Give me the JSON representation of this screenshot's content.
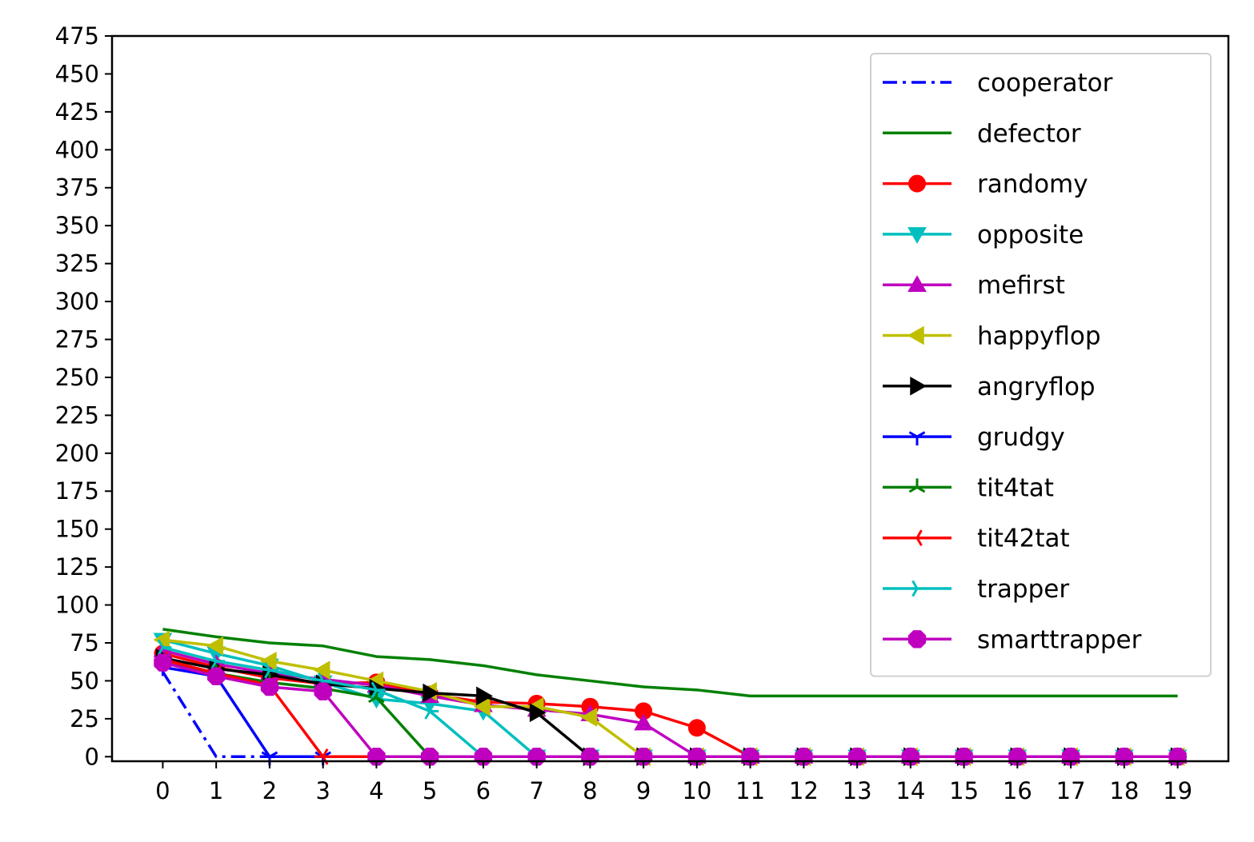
{
  "chart_data": {
    "type": "line",
    "title": "",
    "xlabel": "",
    "ylabel": "",
    "x": [
      0,
      1,
      2,
      3,
      4,
      5,
      6,
      7,
      8,
      9,
      10,
      11,
      12,
      13,
      14,
      15,
      16,
      17,
      18,
      19
    ],
    "xlim": [
      -0.95,
      19.95
    ],
    "ylim": [
      -3,
      475
    ],
    "yticks": [
      0,
      25,
      50,
      75,
      100,
      125,
      150,
      175,
      200,
      225,
      250,
      275,
      300,
      325,
      350,
      375,
      400,
      425,
      450,
      475
    ],
    "grid": false,
    "legend_position": "top-right",
    "series": [
      {
        "name": "cooperator",
        "color": "#0000ff",
        "marker": "none",
        "dash": "dashdot",
        "values": [
          56,
          0,
          0,
          0,
          0,
          0,
          0,
          0,
          0,
          0,
          0,
          0,
          0,
          0,
          0,
          0,
          0,
          0,
          0,
          0
        ]
      },
      {
        "name": "defector",
        "color": "#008000",
        "marker": "none",
        "dash": "solid",
        "values": [
          84,
          79,
          75,
          73,
          66,
          64,
          60,
          54,
          50,
          46,
          44,
          40,
          40,
          40,
          40,
          40,
          40,
          40,
          40,
          40
        ]
      },
      {
        "name": "randomy",
        "color": "#ff0000",
        "marker": "circle",
        "dash": "solid",
        "values": [
          68,
          59,
          52,
          48,
          49,
          41,
          36,
          35,
          33,
          30,
          19,
          0,
          0,
          0,
          0,
          0,
          0,
          0,
          0,
          0
        ]
      },
      {
        "name": "opposite",
        "color": "#00bfbf",
        "marker": "triangle-down",
        "dash": "solid",
        "values": [
          77,
          68,
          60,
          49,
          38,
          35,
          30,
          0,
          0,
          0,
          0,
          0,
          0,
          0,
          0,
          0,
          0,
          0,
          0,
          0
        ]
      },
      {
        "name": "mefirst",
        "color": "#bf00bf",
        "marker": "triangle-up",
        "dash": "solid",
        "values": [
          70,
          61,
          55,
          51,
          47,
          40,
          34,
          31,
          28,
          22,
          0,
          0,
          0,
          0,
          0,
          0,
          0,
          0,
          0,
          0
        ]
      },
      {
        "name": "happyflop",
        "color": "#bfbf00",
        "marker": "triangle-left",
        "dash": "solid",
        "values": [
          77,
          73,
          63,
          57,
          50,
          43,
          33,
          33,
          26,
          0,
          0,
          0,
          0,
          0,
          0,
          0,
          0,
          0,
          0,
          0
        ]
      },
      {
        "name": "angryflop",
        "color": "#000000",
        "marker": "triangle-right",
        "dash": "solid",
        "values": [
          65,
          58,
          54,
          48,
          45,
          42,
          40,
          29,
          0,
          0,
          0,
          0,
          0,
          0,
          0,
          0,
          0,
          0,
          0,
          0
        ]
      },
      {
        "name": "grudgy",
        "color": "#0000ff",
        "marker": "tri-down",
        "dash": "solid",
        "values": [
          59,
          53,
          0,
          0,
          0,
          0,
          0,
          0,
          0,
          0,
          0,
          0,
          0,
          0,
          0,
          0,
          0,
          0,
          0,
          0
        ]
      },
      {
        "name": "tit4tat",
        "color": "#008000",
        "marker": "tri-up",
        "dash": "solid",
        "values": [
          62,
          55,
          49,
          45,
          39,
          0,
          0,
          0,
          0,
          0,
          0,
          0,
          0,
          0,
          0,
          0,
          0,
          0,
          0,
          0
        ]
      },
      {
        "name": "tit42tat",
        "color": "#ff0000",
        "marker": "tri-left",
        "dash": "solid",
        "values": [
          64,
          55,
          47,
          0,
          0,
          0,
          0,
          0,
          0,
          0,
          0,
          0,
          0,
          0,
          0,
          0,
          0,
          0,
          0,
          0
        ]
      },
      {
        "name": "trapper",
        "color": "#00bfbf",
        "marker": "tri-right",
        "dash": "solid",
        "values": [
          72,
          63,
          57,
          50,
          44,
          30,
          0,
          0,
          0,
          0,
          0,
          0,
          0,
          0,
          0,
          0,
          0,
          0,
          0,
          0
        ]
      },
      {
        "name": "smarttrapper",
        "color": "#bf00bf",
        "marker": "octagon",
        "dash": "solid",
        "values": [
          62,
          53,
          46,
          43,
          0,
          0,
          0,
          0,
          0,
          0,
          0,
          0,
          0,
          0,
          0,
          0,
          0,
          0,
          0,
          0
        ]
      }
    ]
  }
}
